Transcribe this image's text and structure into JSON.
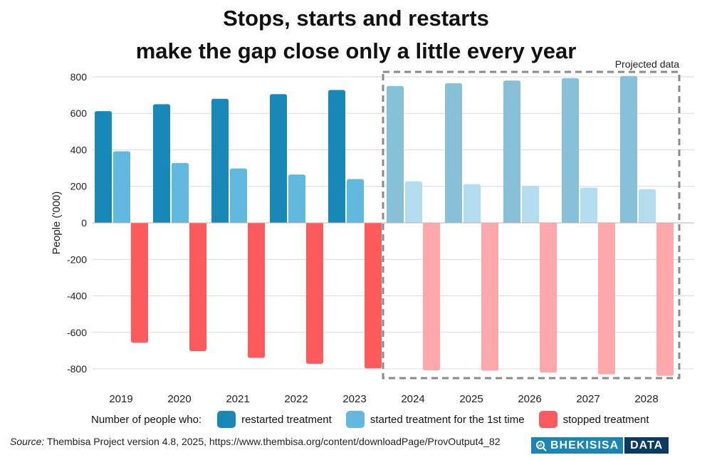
{
  "chart_data": {
    "type": "bar",
    "title_line1": "Stops, starts and restarts",
    "title_line2": "make the gap close only a little every year",
    "ylabel": "People ('000)",
    "xlabel": "",
    "ylim": [
      -900,
      800
    ],
    "yticks": [
      800,
      600,
      400,
      200,
      0,
      -200,
      -400,
      -600,
      -800
    ],
    "ytick_labels": [
      "800",
      "600",
      "400",
      "200",
      "0",
      "-200",
      "-400",
      "-600",
      "-800"
    ],
    "grid": true,
    "categories": [
      "2019",
      "2020",
      "2021",
      "2022",
      "2023",
      "2024",
      "2025",
      "2026",
      "2027",
      "2028"
    ],
    "series": [
      {
        "name": "restarted treatment",
        "values": [
          612,
          650,
          680,
          705,
          728,
          750,
          765,
          780,
          793,
          805
        ]
      },
      {
        "name": "started treatment for the 1st time",
        "values": [
          392,
          328,
          298,
          265,
          240,
          228,
          212,
          203,
          193,
          185
        ]
      },
      {
        "name": "stopped treatment",
        "values": [
          -657,
          -703,
          -740,
          -772,
          -797,
          -808,
          -810,
          -820,
          -830,
          -838
        ]
      }
    ],
    "projected": {
      "label": "Projected data",
      "from_category": "2024",
      "to_category": "2028"
    },
    "colors": {
      "restarted": "#1689b8",
      "started": "#62b9df",
      "stopped": "#fd5a5e",
      "restarted_projected": "#86c1d8",
      "started_projected": "#b3dcef",
      "stopped_projected": "#fda9ab",
      "projection_border": "#8a8a8a",
      "grid": "#d9d9d9"
    }
  },
  "legend": {
    "intro": "Number of people who:",
    "items": [
      {
        "label": "restarted treatment",
        "color": "#1689b8"
      },
      {
        "label": "started treatment for the 1st time",
        "color": "#62b9df"
      },
      {
        "label": "stopped treatment",
        "color": "#fd5a5e"
      }
    ]
  },
  "source": {
    "prefix": "Source:",
    "text": " Thembisa Project version 4.8, 2025, https://www.thembisa.org/content/downloadPage/ProvOutput4_82"
  },
  "logo": {
    "left_text": "BHEKISISA",
    "right_text": "DATA",
    "left_color": "#1a86b5",
    "right_color": "#0b3a62"
  }
}
